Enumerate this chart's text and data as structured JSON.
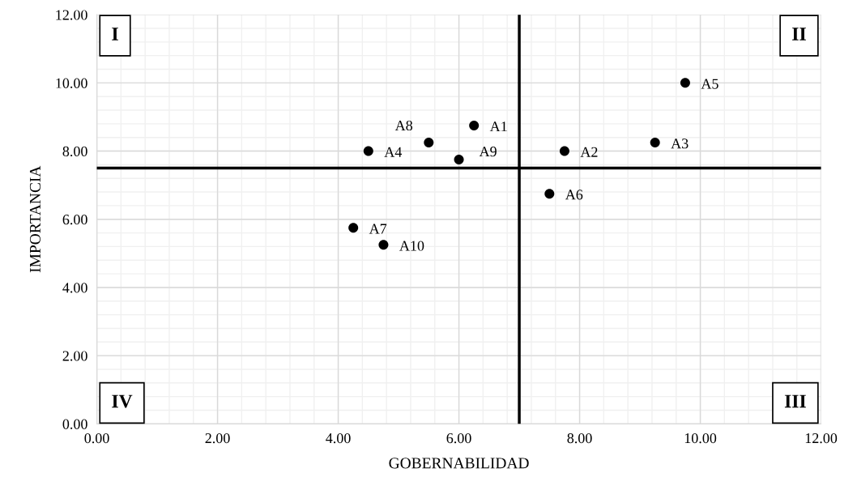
{
  "chart_data": {
    "type": "scatter",
    "xlabel": "GOBERNABILIDAD",
    "ylabel": "IMPORTANCIA",
    "x": [
      6.25,
      7.75,
      9.25,
      4.5,
      9.75,
      7.5,
      4.25,
      5.5,
      6.0,
      4.75
    ],
    "series": [
      {
        "color": "#000000",
        "values": [
          8.75,
          8.0,
          8.25,
          8.0,
          10.0,
          6.75,
          5.75,
          8.25,
          7.75,
          5.25
        ]
      }
    ],
    "marker": "circle",
    "xlim": [
      0,
      12
    ],
    "ylim": [
      0,
      12
    ],
    "xticks": [
      {
        "value": 0,
        "label": "0.00"
      },
      {
        "value": 2,
        "label": "2.00"
      },
      {
        "value": 4,
        "label": "4.00"
      },
      {
        "value": 6,
        "label": "6.00"
      },
      {
        "value": 8,
        "label": "8.00"
      },
      {
        "value": 10,
        "label": "10.00"
      },
      {
        "value": 12,
        "label": "12.00"
      }
    ],
    "yticks": [
      {
        "value": 0,
        "label": "0.00"
      },
      {
        "value": 2,
        "label": "2.00"
      },
      {
        "value": 4,
        "label": "4.00"
      },
      {
        "value": 6,
        "label": "6.00"
      },
      {
        "value": 8,
        "label": "8.00"
      },
      {
        "value": 10,
        "label": "10.00"
      },
      {
        "value": 12,
        "label": "12.00"
      }
    ],
    "grid": true,
    "ref_lines": [
      {
        "axis": "x",
        "value": 7,
        "color": "#000000"
      },
      {
        "axis": "y",
        "value": 7.5,
        "color": "#000000"
      }
    ],
    "annotations": [
      {
        "text": "A1",
        "x": 6.25,
        "y": 8.75
      },
      {
        "text": "A2",
        "x": 7.75,
        "y": 8.0
      },
      {
        "text": "A3",
        "x": 9.25,
        "y": 8.25
      },
      {
        "text": "A4",
        "x": 4.5,
        "y": 8.0
      },
      {
        "text": "A5",
        "x": 9.75,
        "y": 10.0
      },
      {
        "text": "A6",
        "x": 7.5,
        "y": 6.75
      },
      {
        "text": "A7",
        "x": 4.25,
        "y": 5.75
      },
      {
        "text": "A8",
        "x": 5.5,
        "y": 8.25
      },
      {
        "text": "A9",
        "x": 6.0,
        "y": 7.75
      },
      {
        "text": "A10",
        "x": 4.75,
        "y": 5.25
      },
      "I",
      "II",
      "III",
      "IV"
    ]
  }
}
